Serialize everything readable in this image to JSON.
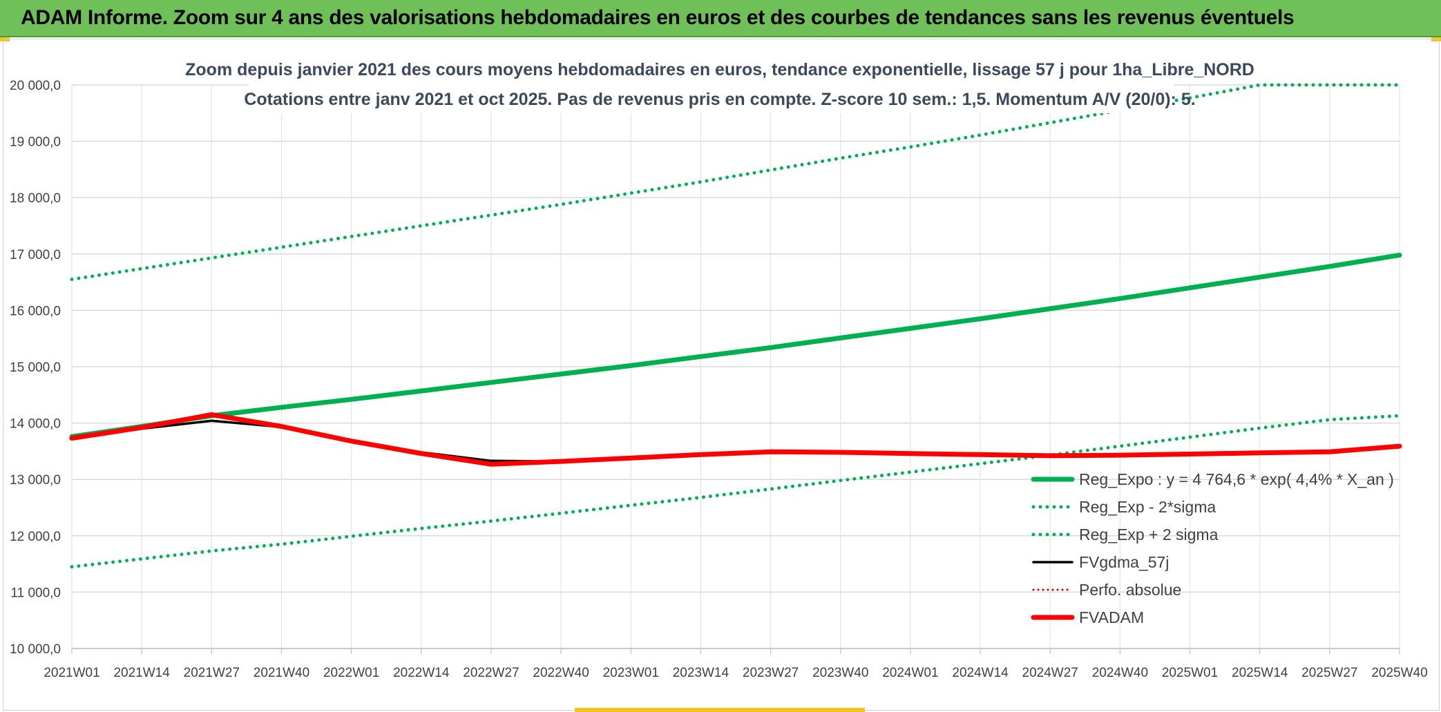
{
  "banner": {
    "title": "ADAM Informe. Zoom sur 4 ans des valorisations hebdomadaires en euros et des courbes de tendances sans les revenus éventuels"
  },
  "colors": {
    "banner_bg": "#70c05a",
    "accent": "#f0c419",
    "trend": "#00b050",
    "smooth": "#000000",
    "adam": "#ff0000",
    "perfo": "#c00000"
  },
  "chart_data": {
    "type": "line",
    "title": "Zoom depuis janvier 2021 des cours moyens hebdomadaires en euros, tendance exponentielle, lissage 57 j pour 1ha_Libre_NORD",
    "subtitle": "Cotations entre janv 2021 et oct 2025. Pas de revenus pris en compte. Z-score 10 sem.: 1,5. Momentum A/V (20/0): 5.",
    "xlabel": "",
    "ylabel": "",
    "ylim": [
      10000,
      20000
    ],
    "yticks": [
      "20 000,0",
      "19 000,0",
      "18 000,0",
      "17 000,0",
      "16 000,0",
      "15 000,0",
      "14 000,0",
      "13 000,0",
      "12 000,0",
      "11 000,0",
      "10 000,0"
    ],
    "xticks": [
      "2021W01",
      "2021W14",
      "2021W27",
      "2021W40",
      "2022W01",
      "2022W14",
      "2022W27",
      "2022W40",
      "2023W01",
      "2023W14",
      "2023W27",
      "2023W40",
      "2024W01",
      "2024W14",
      "2024W27",
      "2024W40",
      "2025W01",
      "2025W14",
      "2025W27",
      "2025W40"
    ],
    "grid": true,
    "legend_position": "bottom-right",
    "series": [
      {
        "name": "Reg_Expo : y = 4 764,6 * exp( 4,4% *  X_an )",
        "style": "solid-thick",
        "color": "#00b050",
        "values": [
          13760,
          13940,
          14130,
          14280,
          14420,
          14570,
          14720,
          14870,
          15020,
          15180,
          15340,
          15510,
          15680,
          15850,
          16030,
          16210,
          16400,
          16590,
          16780,
          16980
        ]
      },
      {
        "name": "Reg_Exp - 2*sigma",
        "style": "dotted",
        "color": "#00b050",
        "values": [
          11450,
          11590,
          11730,
          11850,
          11990,
          12130,
          12260,
          12400,
          12540,
          12680,
          12830,
          12980,
          13130,
          13280,
          13430,
          13590,
          13750,
          13910,
          14060,
          14130
        ]
      },
      {
        "name": "Reg_Exp + 2 sigma",
        "style": "dotted",
        "color": "#00b050",
        "values": [
          16550,
          16740,
          16930,
          17120,
          17310,
          17500,
          17690,
          17880,
          18080,
          18280,
          18490,
          18700,
          18900,
          19110,
          19330,
          19550,
          19770,
          20000,
          20000,
          20000
        ]
      },
      {
        "name": "FVgdma_57j",
        "style": "solid",
        "color": "#000000",
        "values": [
          13740,
          13900,
          14040,
          13930,
          13700,
          13480,
          13330,
          13320,
          13380,
          13440,
          13480,
          13470,
          13460,
          13440,
          13430,
          13440,
          13450,
          13470,
          13490,
          13570
        ]
      },
      {
        "name": "Perfo. absolue",
        "style": "dotted-thin",
        "color": "#c00000",
        "values": []
      },
      {
        "name": "FVADAM",
        "style": "solid-thick",
        "color": "#ff0000",
        "values": [
          13730,
          13920,
          14150,
          13940,
          13680,
          13460,
          13270,
          13320,
          13380,
          13440,
          13490,
          13480,
          13460,
          13440,
          13420,
          13430,
          13450,
          13470,
          13490,
          13590
        ]
      }
    ]
  }
}
